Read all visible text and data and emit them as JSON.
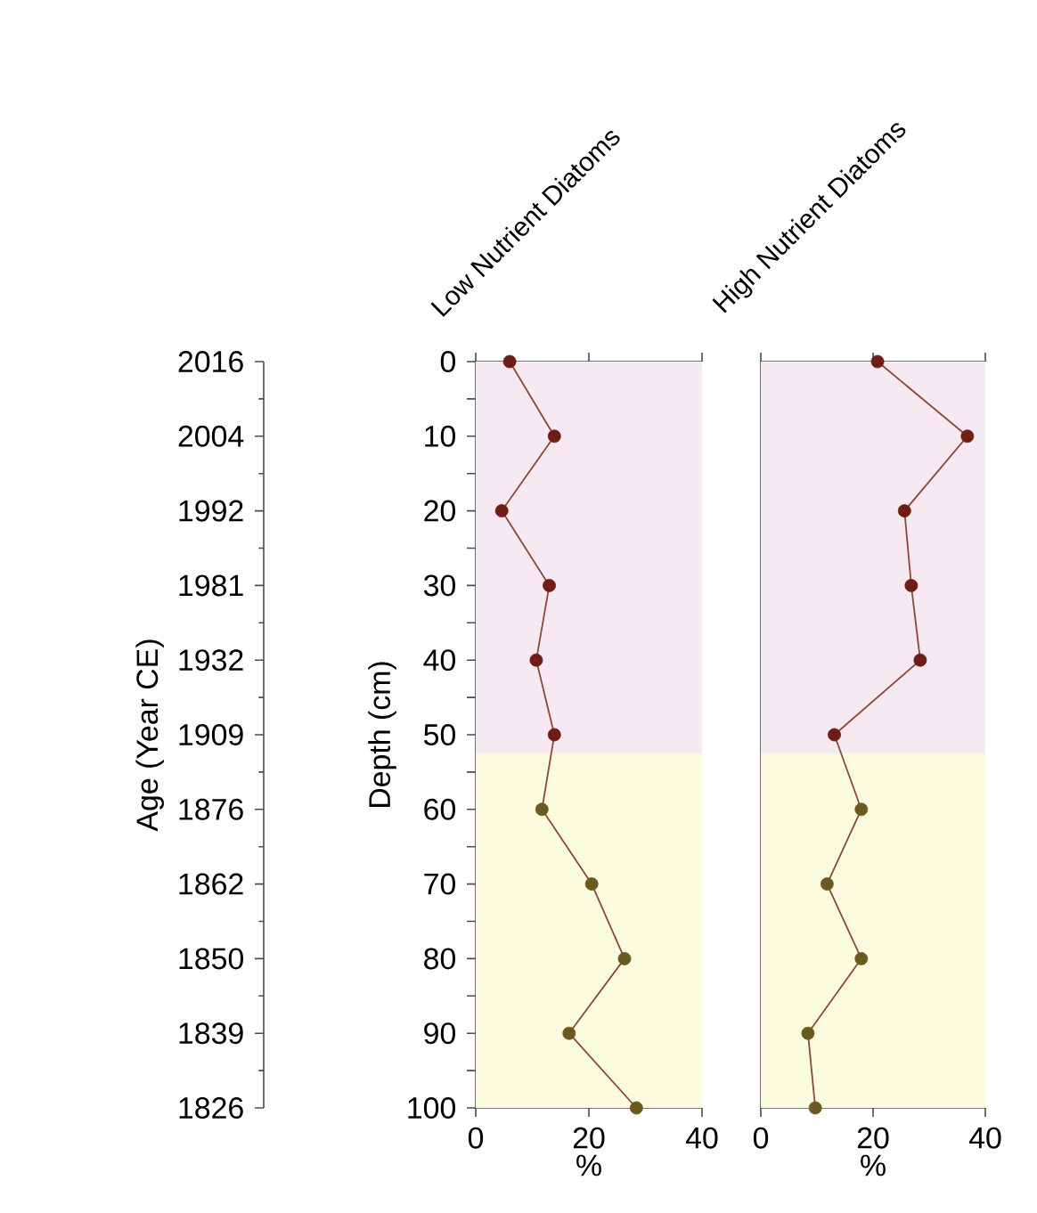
{
  "chart_data": [
    {
      "type": "line",
      "title": "Low Nutrient Diatoms",
      "xlabel": "%",
      "ylabel": "Depth (cm)",
      "y2label": "Age (Year CE)",
      "marker": "circle",
      "line_style": "solid",
      "xlim": [
        0,
        40
      ],
      "xticks": [
        0,
        20,
        40
      ],
      "ylim": [
        100,
        0
      ],
      "yticks": [
        0,
        {
          "value": 5,
          "label": null
        },
        10,
        {
          "value": 15,
          "label": null
        },
        20,
        {
          "value": 25,
          "label": null
        },
        30,
        {
          "value": 35,
          "label": null
        },
        40,
        {
          "value": 45,
          "label": null
        },
        50,
        {
          "value": 55,
          "label": null
        },
        60,
        {
          "value": 65,
          "label": null
        },
        70,
        {
          "value": 75,
          "label": null
        },
        80,
        {
          "value": 85,
          "label": null
        },
        90,
        {
          "value": 95,
          "label": null
        },
        100
      ],
      "y2_categories": [
        "2016",
        "2004",
        "1992",
        "1981",
        "1932",
        "1909",
        "1876",
        "1862",
        "1850",
        "1839",
        "1826"
      ],
      "bands": [
        {
          "axis": "y",
          "from": 0,
          "to": 52.5,
          "color": "#f6e9f1"
        },
        {
          "axis": "y",
          "from": 52.5,
          "to": 100,
          "color": "#fbfbe0"
        }
      ],
      "series": [
        {
          "color": "#8a4a38",
          "x": [
            6.0,
            13.9,
            4.6,
            13.0,
            10.7,
            13.9,
            11.7,
            20.5,
            26.3,
            16.5,
            28.4
          ],
          "values": [
            0,
            10,
            20,
            30,
            40,
            50,
            60,
            70,
            80,
            90,
            100
          ],
          "colors": [
            "#6e1c16",
            "#6e1c16",
            "#6e1c16",
            "#6e1c16",
            "#6e1c16",
            "#6e1c16",
            "#6b5a1f",
            "#6b5a1f",
            "#6b5a1f",
            "#6b5a1f",
            "#6b5a1f"
          ]
        }
      ]
    },
    {
      "type": "line",
      "title": "High Nutrient Diatoms",
      "xlabel": "%",
      "marker": "circle",
      "line_style": "solid",
      "tick_labels": "x",
      "xlim": [
        0,
        40
      ],
      "xticks": [
        0,
        20,
        40
      ],
      "ylim": [
        100,
        0
      ],
      "bands": [
        {
          "axis": "y",
          "from": 0,
          "to": 52.5,
          "color": "#f6e9f1"
        },
        {
          "axis": "y",
          "from": 52.5,
          "to": 100,
          "color": "#fbfbe0"
        }
      ],
      "series": [
        {
          "color": "#8a4a38",
          "x": [
            20.8,
            36.8,
            25.6,
            26.8,
            28.4,
            13.1,
            17.9,
            11.8,
            17.9,
            8.4,
            9.7
          ],
          "values": [
            0,
            10,
            20,
            30,
            40,
            50,
            60,
            70,
            80,
            90,
            100
          ],
          "colors": [
            "#6e1c16",
            "#6e1c16",
            "#6e1c16",
            "#6e1c16",
            "#6e1c16",
            "#6e1c16",
            "#6b5a1f",
            "#6b5a1f",
            "#6b5a1f",
            "#6b5a1f",
            "#6b5a1f"
          ]
        }
      ]
    }
  ]
}
